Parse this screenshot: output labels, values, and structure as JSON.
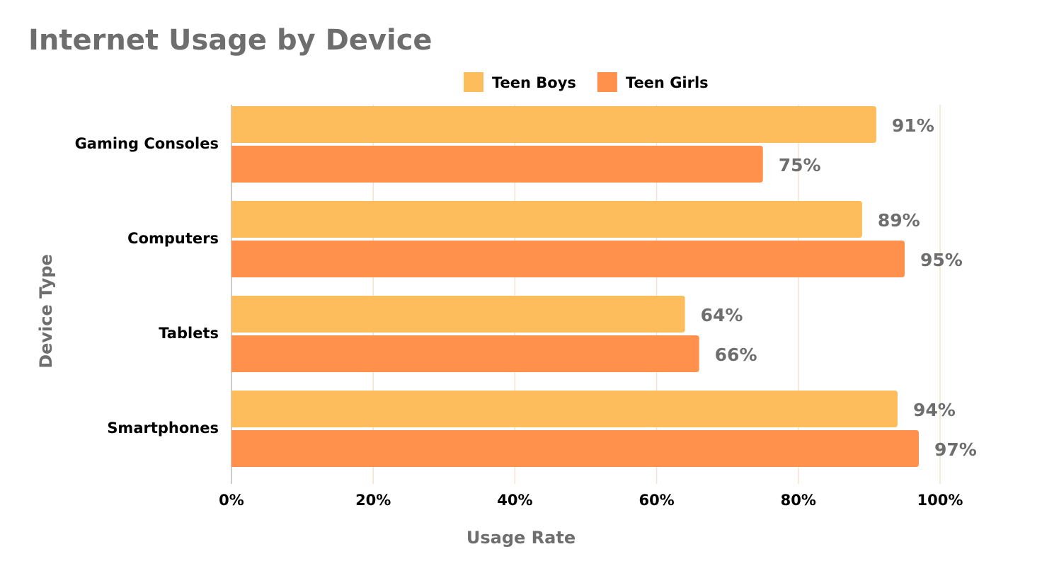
{
  "chart_data": {
    "type": "bar",
    "orientation": "horizontal",
    "title": "Internet Usage by Device",
    "xlabel": "Usage Rate",
    "ylabel": "Device Type",
    "categories": [
      "Gaming Consoles",
      "Computers",
      "Tablets",
      "Smartphones"
    ],
    "series": [
      {
        "name": "Teen Boys",
        "values": [
          91,
          89,
          64,
          94
        ],
        "color": "#FDBD5C"
      },
      {
        "name": "Teen Girls",
        "values": [
          75,
          95,
          66,
          97
        ],
        "color": "#FF914D"
      }
    ],
    "value_suffix": "%",
    "xlim": [
      0,
      100
    ],
    "xticks": [
      0,
      20,
      40,
      60,
      80,
      100
    ],
    "xtick_labels": [
      "0%",
      "20%",
      "40%",
      "60%",
      "80%",
      "100%"
    ],
    "grid": "vertical",
    "legend": "top-center",
    "colors": {
      "title": "#6E6E6E",
      "grid": "#F3E3CF",
      "axis_text": "#000000",
      "data_label": "#6E6E6E"
    }
  }
}
